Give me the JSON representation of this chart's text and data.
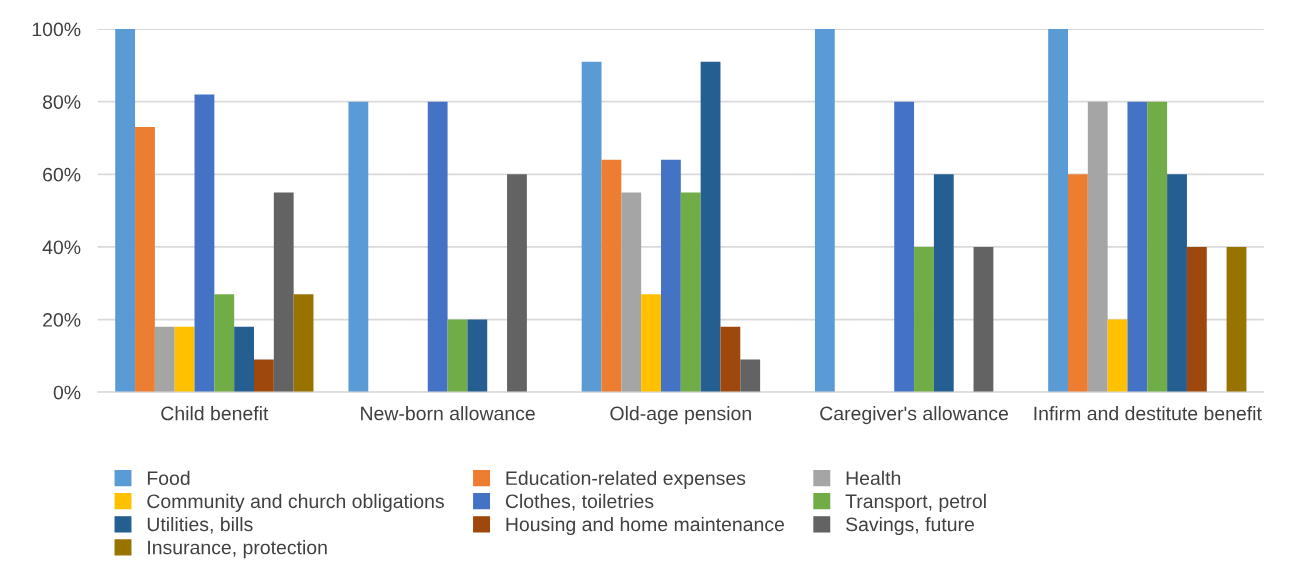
{
  "chart_data": {
    "type": "bar",
    "categories": [
      "Child benefit",
      "New-born allowance",
      "Old-age pension",
      "Caregiver's allowance",
      "Infirm and destitute benefit"
    ],
    "series": [
      {
        "name": "Food",
        "color": "#5b9bd5",
        "values": [
          100,
          80,
          91,
          100,
          100
        ]
      },
      {
        "name": "Education-related expenses",
        "color": "#ed7d31",
        "values": [
          73,
          0,
          64,
          0,
          60
        ]
      },
      {
        "name": "Health",
        "color": "#a5a5a5",
        "values": [
          18,
          0,
          55,
          0,
          80
        ]
      },
      {
        "name": "Community and church obligations",
        "color": "#ffc000",
        "values": [
          18,
          0,
          27,
          0,
          20
        ]
      },
      {
        "name": "Clothes, toiletries",
        "color": "#4472c4",
        "values": [
          82,
          80,
          64,
          80,
          80
        ]
      },
      {
        "name": "Transport, petrol",
        "color": "#70ad47",
        "values": [
          27,
          20,
          55,
          40,
          80
        ]
      },
      {
        "name": "Utilities, bills",
        "color": "#255e91",
        "values": [
          18,
          20,
          91,
          60,
          60
        ]
      },
      {
        "name": "Housing and home maintenance",
        "color": "#9e480e",
        "values": [
          9,
          0,
          18,
          0,
          40
        ]
      },
      {
        "name": "Savings, future",
        "color": "#636363",
        "values": [
          55,
          60,
          9,
          40,
          0
        ]
      },
      {
        "name": "Insurance, protection",
        "color": "#997300",
        "values": [
          27,
          0,
          0,
          0,
          40
        ]
      }
    ],
    "ylim": [
      0,
      100
    ],
    "yticks": [
      {
        "value": 0,
        "label": "0%"
      },
      {
        "value": 20,
        "label": "20%"
      },
      {
        "value": 40,
        "label": "40%"
      },
      {
        "value": 60,
        "label": "60%"
      },
      {
        "value": 80,
        "label": "80%"
      },
      {
        "value": 100,
        "label": "100%"
      }
    ],
    "grid": "y",
    "legend": "bottom"
  }
}
